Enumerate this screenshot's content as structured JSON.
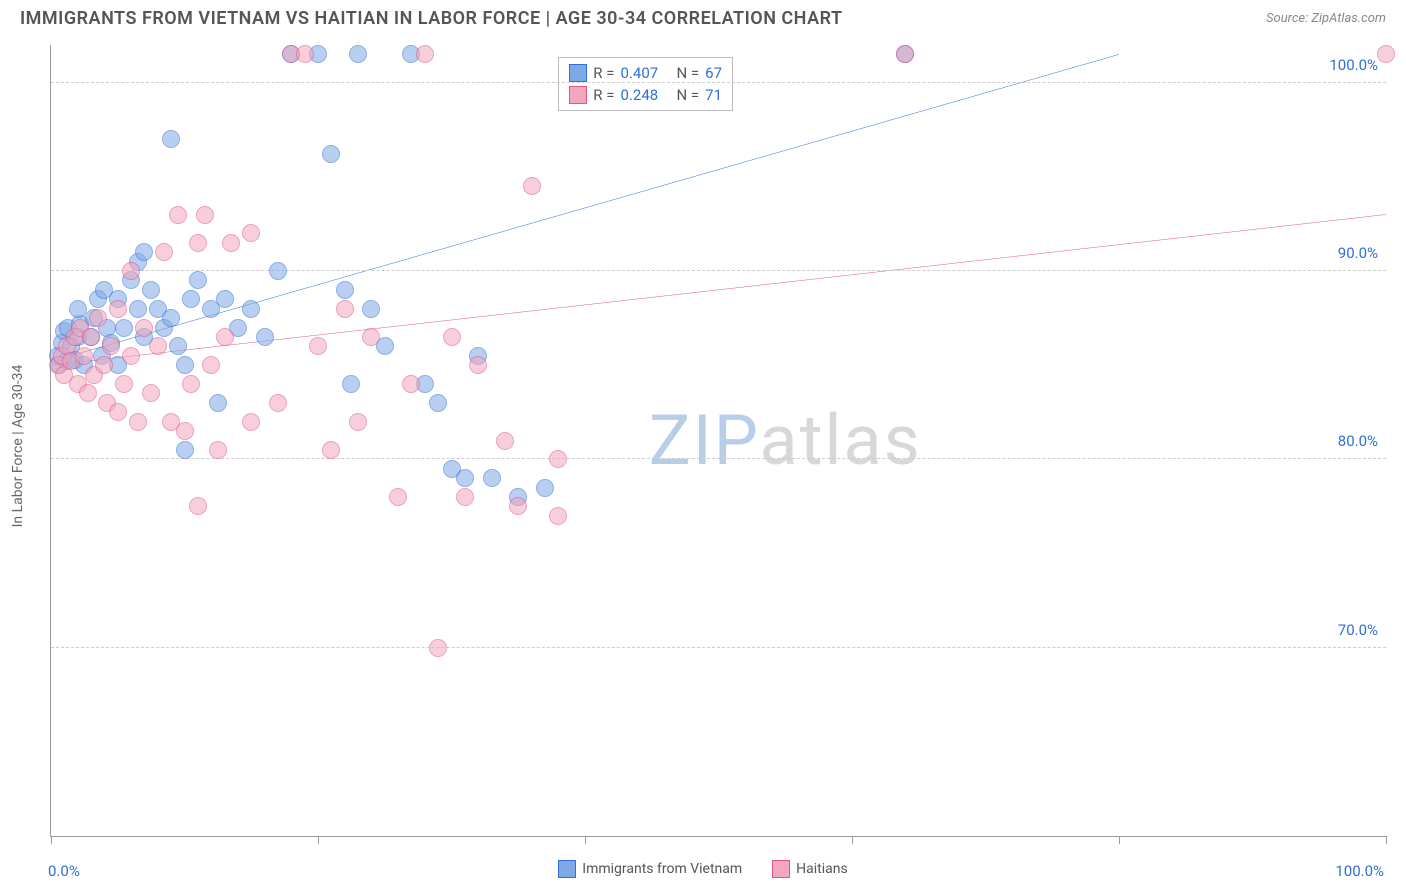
{
  "title": "IMMIGRANTS FROM VIETNAM VS HAITIAN IN LABOR FORCE | AGE 30-34 CORRELATION CHART",
  "source": "Source: ZipAtlas.com",
  "yaxis_title": "In Labor Force | Age 30-34",
  "watermark": {
    "text_zip": "ZIP",
    "text_atlas": "atlas",
    "color_zip": "#b9cce8",
    "color_atlas": "#d8d8d8"
  },
  "chart": {
    "type": "scatter",
    "xlim": [
      0,
      100
    ],
    "ylim": [
      60,
      102
    ],
    "x_ticks": [
      0,
      20,
      40,
      60,
      80,
      100
    ],
    "x_tick_labels": {
      "0": "0.0%",
      "100": "100.0%"
    },
    "y_gridlines": [
      70,
      80,
      90,
      100
    ],
    "y_tick_labels": {
      "70": "70.0%",
      "80": "80.0%",
      "90": "90.0%",
      "100": "100.0%"
    },
    "grid_color": "#cccccc",
    "axis_color": "#999999",
    "label_color": "#2e6fd9",
    "background_color": "#ffffff",
    "marker_radius": 9,
    "marker_opacity": 0.55,
    "trend_line_width": 2
  },
  "series": [
    {
      "name": "Immigrants from Vietnam",
      "color_fill": "#7fa9e6",
      "color_stroke": "#2e6fd9",
      "r_value": "0.407",
      "n_value": "67",
      "trend": {
        "x1": 0,
        "y1": 85.2,
        "x2": 80,
        "y2": 101.5
      },
      "points": [
        [
          0.5,
          85.5
        ],
        [
          0.8,
          86.2
        ],
        [
          0.6,
          85.0
        ],
        [
          1.0,
          86.8
        ],
        [
          1.2,
          85.2
        ],
        [
          1.5,
          86.0
        ],
        [
          1.3,
          87.0
        ],
        [
          1.8,
          85.3
        ],
        [
          2.0,
          86.5
        ],
        [
          2.2,
          87.2
        ],
        [
          2.5,
          85.0
        ],
        [
          2.0,
          88.0
        ],
        [
          3.0,
          86.5
        ],
        [
          3.2,
          87.5
        ],
        [
          3.5,
          88.5
        ],
        [
          3.8,
          85.5
        ],
        [
          4.0,
          89.0
        ],
        [
          4.2,
          87.0
        ],
        [
          4.5,
          86.2
        ],
        [
          5.0,
          88.5
        ],
        [
          5.5,
          87.0
        ],
        [
          5.0,
          85.0
        ],
        [
          6.0,
          89.5
        ],
        [
          6.5,
          88.0
        ],
        [
          6.5,
          90.5
        ],
        [
          7.0,
          86.5
        ],
        [
          7.0,
          91.0
        ],
        [
          7.5,
          89.0
        ],
        [
          8.0,
          88.0
        ],
        [
          8.5,
          87.0
        ],
        [
          9.0,
          87.5
        ],
        [
          9.5,
          86.0
        ],
        [
          9.0,
          97.0
        ],
        [
          10.0,
          85.0
        ],
        [
          10.5,
          88.5
        ],
        [
          10.0,
          80.5
        ],
        [
          11.0,
          89.5
        ],
        [
          12.0,
          88.0
        ],
        [
          12.5,
          83.0
        ],
        [
          13.0,
          88.5
        ],
        [
          14.0,
          87.0
        ],
        [
          15.0,
          88.0
        ],
        [
          16.0,
          86.5
        ],
        [
          17.0,
          90.0
        ],
        [
          18.0,
          101.5
        ],
        [
          20.0,
          101.5
        ],
        [
          21.0,
          96.2
        ],
        [
          22.0,
          89.0
        ],
        [
          22.5,
          84.0
        ],
        [
          23.0,
          101.5
        ],
        [
          24.0,
          88.0
        ],
        [
          25.0,
          86.0
        ],
        [
          27.0,
          101.5
        ],
        [
          28.0,
          84.0
        ],
        [
          29.0,
          83.0
        ],
        [
          30.0,
          79.5
        ],
        [
          31.0,
          79.0
        ],
        [
          32.0,
          85.5
        ],
        [
          33.0,
          79.0
        ],
        [
          35.0,
          78.0
        ],
        [
          37.0,
          78.5
        ],
        [
          64.0,
          101.5
        ]
      ]
    },
    {
      "name": "Haitians",
      "color_fill": "#f2a7bd",
      "color_stroke": "#e0558a",
      "r_value": "0.248",
      "n_value": "71",
      "trend": {
        "x1": 0,
        "y1": 85.0,
        "x2": 100,
        "y2": 93.0
      },
      "points": [
        [
          0.5,
          85.0
        ],
        [
          0.8,
          85.5
        ],
        [
          1.0,
          84.5
        ],
        [
          1.2,
          86.0
        ],
        [
          1.5,
          85.2
        ],
        [
          1.8,
          86.5
        ],
        [
          2.0,
          84.0
        ],
        [
          2.2,
          87.0
        ],
        [
          2.5,
          85.5
        ],
        [
          2.8,
          83.5
        ],
        [
          3.0,
          86.5
        ],
        [
          3.2,
          84.5
        ],
        [
          3.5,
          87.5
        ],
        [
          4.0,
          85.0
        ],
        [
          4.2,
          83.0
        ],
        [
          4.5,
          86.0
        ],
        [
          5.0,
          82.5
        ],
        [
          5.0,
          88.0
        ],
        [
          5.5,
          84.0
        ],
        [
          6.0,
          85.5
        ],
        [
          6.0,
          90.0
        ],
        [
          6.5,
          82.0
        ],
        [
          7.0,
          87.0
        ],
        [
          7.5,
          83.5
        ],
        [
          8.0,
          86.0
        ],
        [
          8.5,
          91.0
        ],
        [
          9.0,
          82.0
        ],
        [
          9.5,
          93.0
        ],
        [
          10.0,
          81.5
        ],
        [
          10.5,
          84.0
        ],
        [
          11.0,
          91.5
        ],
        [
          11.0,
          77.5
        ],
        [
          11.5,
          93.0
        ],
        [
          12.0,
          85.0
        ],
        [
          12.5,
          80.5
        ],
        [
          13.0,
          86.5
        ],
        [
          13.5,
          91.5
        ],
        [
          15.0,
          82.0
        ],
        [
          15.0,
          92.0
        ],
        [
          17.0,
          83.0
        ],
        [
          18.0,
          101.5
        ],
        [
          19.0,
          101.5
        ],
        [
          20.0,
          86.0
        ],
        [
          21.0,
          80.5
        ],
        [
          22.0,
          88.0
        ],
        [
          23.0,
          82.0
        ],
        [
          24.0,
          86.5
        ],
        [
          26.0,
          78.0
        ],
        [
          27.0,
          84.0
        ],
        [
          28.0,
          101.5
        ],
        [
          29.0,
          70.0
        ],
        [
          30.0,
          86.5
        ],
        [
          31.0,
          78.0
        ],
        [
          32.0,
          85.0
        ],
        [
          34.0,
          81.0
        ],
        [
          35.0,
          77.5
        ],
        [
          36.0,
          94.5
        ],
        [
          38.0,
          80.0
        ],
        [
          38.0,
          77.0
        ],
        [
          64.0,
          101.5
        ],
        [
          100.0,
          101.5
        ]
      ]
    }
  ],
  "legend_float": {
    "top_pct": 1.5,
    "left_pct": 38,
    "r_label": "R =",
    "n_label": "N ="
  },
  "legend_bottom": [
    {
      "label": "Immigrants from Vietnam",
      "series": 0
    },
    {
      "label": "Haitians",
      "series": 1
    }
  ]
}
